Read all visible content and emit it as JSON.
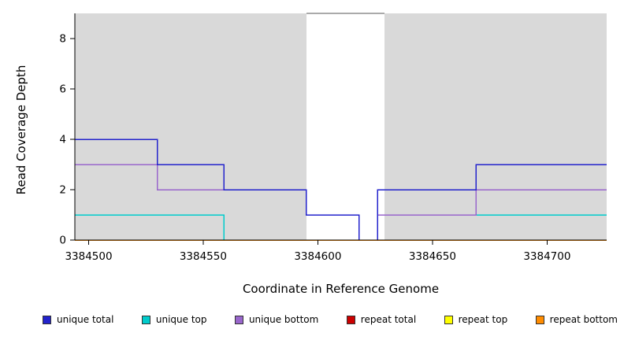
{
  "chart_data": {
    "type": "line",
    "subtype": "step-coverage-plot",
    "title": "",
    "xlabel": "Coordinate in Reference Genome",
    "ylabel": "Read Coverage Depth",
    "xlim": [
      3384494,
      3384726
    ],
    "ylim": [
      0,
      9
    ],
    "xticks": [
      3384500,
      3384550,
      3384600,
      3384650,
      3384700
    ],
    "yticks": [
      0,
      2,
      4,
      6,
      8
    ],
    "grid": false,
    "legend_position": "bottom",
    "axis_color": "#000000",
    "background": {
      "panel_color": "#ffffff",
      "shaded_color": "#d9d9d9",
      "shaded_regions": [
        {
          "x0": 3384494,
          "x1": 3384595
        },
        {
          "x0": 3384629,
          "x1": 3384726
        }
      ],
      "gap": {
        "x0": 3384595,
        "x1": 3384629,
        "color": "#ffffff",
        "top_border": "#555555"
      }
    },
    "draw_order": [
      1,
      2,
      0,
      3,
      4,
      5
    ],
    "series": [
      {
        "name": "unique total",
        "color": "#2323cc",
        "steps": [
          [
            3384494,
            4
          ],
          [
            3384530,
            3
          ],
          [
            3384559,
            2
          ],
          [
            3384595,
            1
          ],
          [
            3384618,
            0
          ],
          [
            3384626,
            2
          ],
          [
            3384669,
            3
          ],
          [
            3384726,
            3
          ]
        ]
      },
      {
        "name": "unique top",
        "color": "#00cccc",
        "steps": [
          [
            3384494,
            1
          ],
          [
            3384559,
            0
          ],
          [
            3384626,
            1
          ],
          [
            3384726,
            1
          ]
        ]
      },
      {
        "name": "unique bottom",
        "color": "#9966cc",
        "steps": [
          [
            3384494,
            3
          ],
          [
            3384530,
            2
          ],
          [
            3384595,
            1
          ],
          [
            3384618,
            0
          ],
          [
            3384626,
            1
          ],
          [
            3384669,
            2
          ],
          [
            3384726,
            2
          ]
        ]
      },
      {
        "name": "repeat total",
        "color": "#cc0000",
        "steps": [
          [
            3384494,
            0
          ],
          [
            3384726,
            0
          ]
        ]
      },
      {
        "name": "repeat top",
        "color": "#ffff00",
        "steps": [
          [
            3384494,
            0
          ],
          [
            3384726,
            0
          ]
        ]
      },
      {
        "name": "repeat bottom",
        "color": "#ff8c00",
        "steps": [
          [
            3384494,
            0
          ],
          [
            3384726,
            0
          ]
        ]
      }
    ]
  }
}
